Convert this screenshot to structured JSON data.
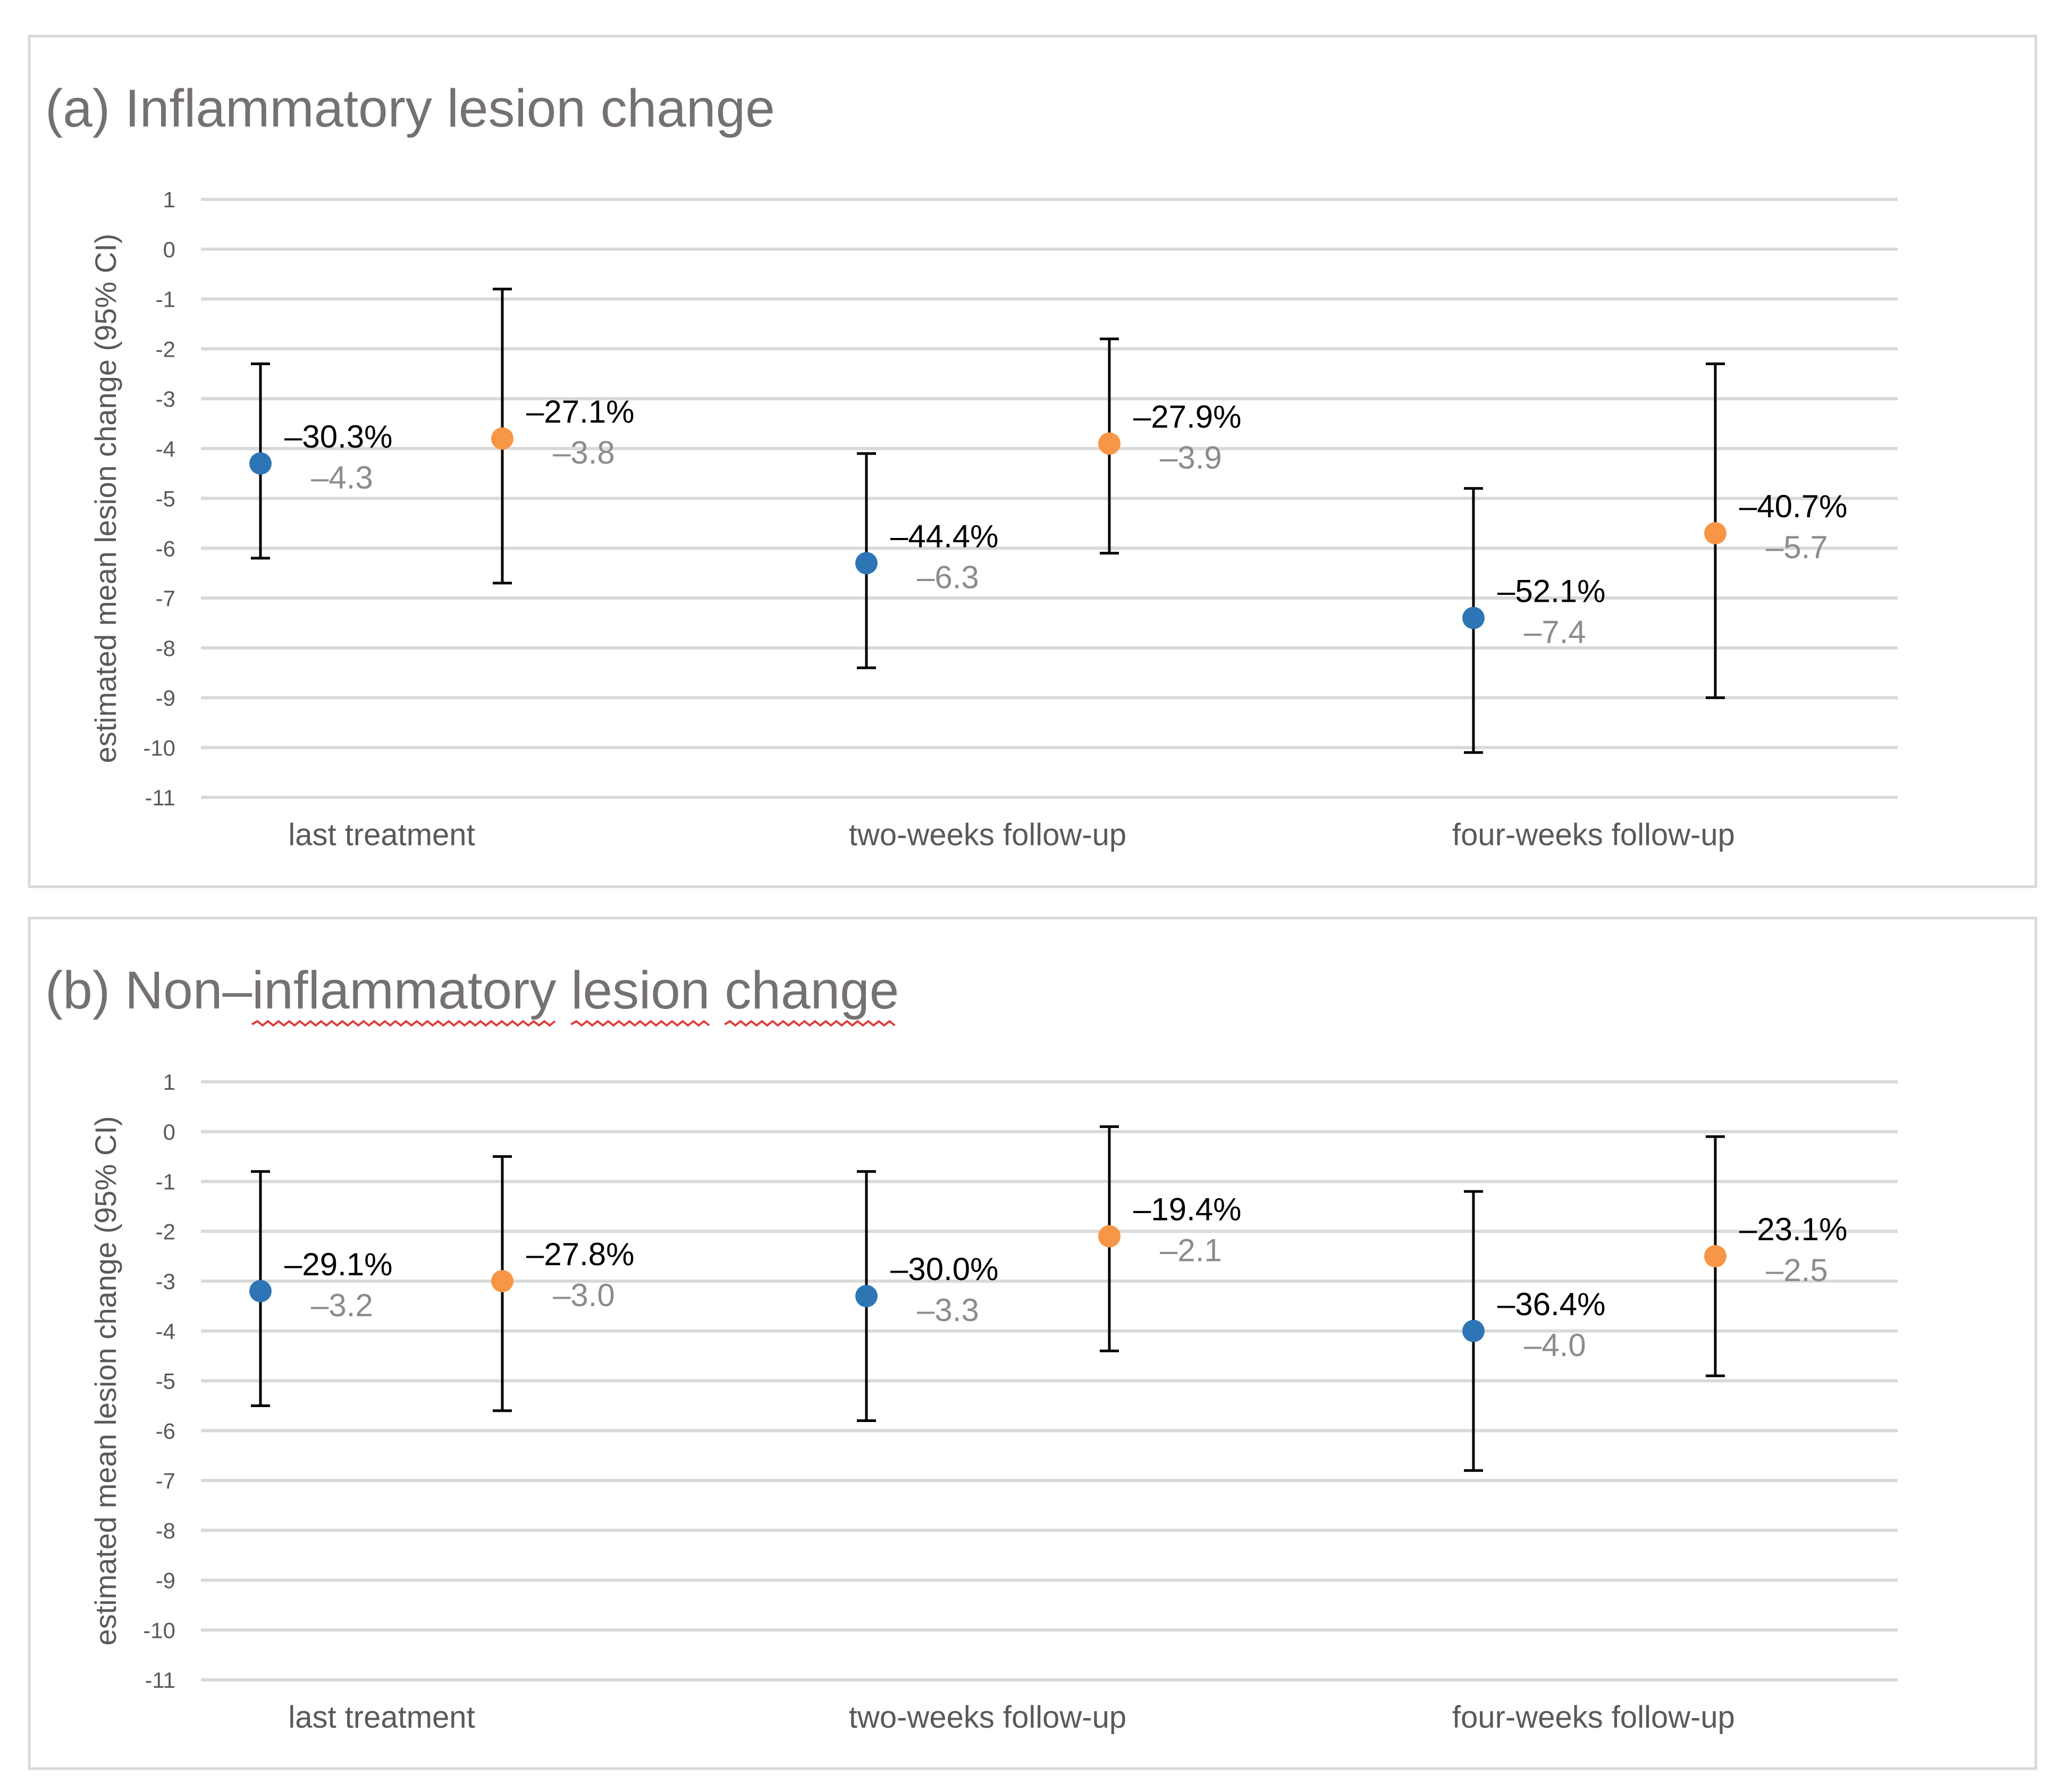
{
  "colors": {
    "series_blue": "#2e75b6",
    "series_orange": "#f79646",
    "title": "#767171",
    "grid": "#d9d9d9"
  },
  "chart_data": [
    {
      "type": "scatter",
      "title": "(a) Inflammatory lesion change",
      "title_parts": [
        "(a) Inflammatory lesion change"
      ],
      "ylabel": "estimated mean lesion change (95% CI)",
      "xlabel": "",
      "ylim": [
        -11,
        1
      ],
      "yticks": [
        1,
        0,
        -1,
        -2,
        -3,
        -4,
        -5,
        -6,
        -7,
        -8,
        -9,
        -10,
        -11
      ],
      "grid": true,
      "categories": [
        "last treatment",
        "two-weeks follow-up",
        "four-weeks follow-up"
      ],
      "series": [
        {
          "color": "#2e75b6",
          "values": [
            -4.3,
            -6.3,
            -7.4
          ],
          "ci_low": [
            -6.2,
            -8.4,
            -10.1
          ],
          "ci_high": [
            -2.3,
            -4.1,
            -4.8
          ],
          "pct_labels": [
            "–30.3%",
            "–44.4%",
            "–52.1%"
          ],
          "value_labels": [
            "–4.3",
            "–6.3",
            "–7.4"
          ]
        },
        {
          "color": "#f79646",
          "values": [
            -3.8,
            -3.9,
            -5.7
          ],
          "ci_low": [
            -6.7,
            -6.1,
            -9.0
          ],
          "ci_high": [
            -0.8,
            -1.8,
            -2.3
          ],
          "pct_labels": [
            "–27.1%",
            "–27.9%",
            "–40.7%"
          ],
          "value_labels": [
            "–3.8",
            "–3.9",
            "–5.7"
          ]
        }
      ]
    },
    {
      "type": "scatter",
      "title": "(b) Non–inflammatory lesion change",
      "title_parts": [
        "(b) Non–",
        "inflammatory",
        " ",
        "lesion",
        " ",
        "change"
      ],
      "ylabel": "estimated mean lesion change (95% CI)",
      "xlabel": "",
      "ylim": [
        -11,
        1
      ],
      "yticks": [
        1,
        0,
        -1,
        -2,
        -3,
        -4,
        -5,
        -6,
        -7,
        -8,
        -9,
        -10,
        -11
      ],
      "grid": true,
      "categories": [
        "last treatment",
        "two-weeks follow-up",
        "four-weeks follow-up"
      ],
      "series": [
        {
          "color": "#2e75b6",
          "values": [
            -3.2,
            -3.3,
            -4.0
          ],
          "ci_low": [
            -5.5,
            -5.8,
            -6.8
          ],
          "ci_high": [
            -0.8,
            -0.8,
            -1.2
          ],
          "pct_labels": [
            "–29.1%",
            "–30.0%",
            "–36.4%"
          ],
          "value_labels": [
            "–3.2",
            "–3.3",
            "–4.0"
          ]
        },
        {
          "color": "#f79646",
          "values": [
            -3.0,
            -2.1,
            -2.5
          ],
          "ci_low": [
            -5.6,
            -4.4,
            -4.9
          ],
          "ci_high": [
            -0.5,
            0.1,
            -0.1
          ],
          "pct_labels": [
            "–27.8%",
            "–19.4%",
            "–23.1%"
          ],
          "value_labels": [
            "–3.0",
            "–2.1",
            "–2.5"
          ]
        }
      ]
    }
  ]
}
